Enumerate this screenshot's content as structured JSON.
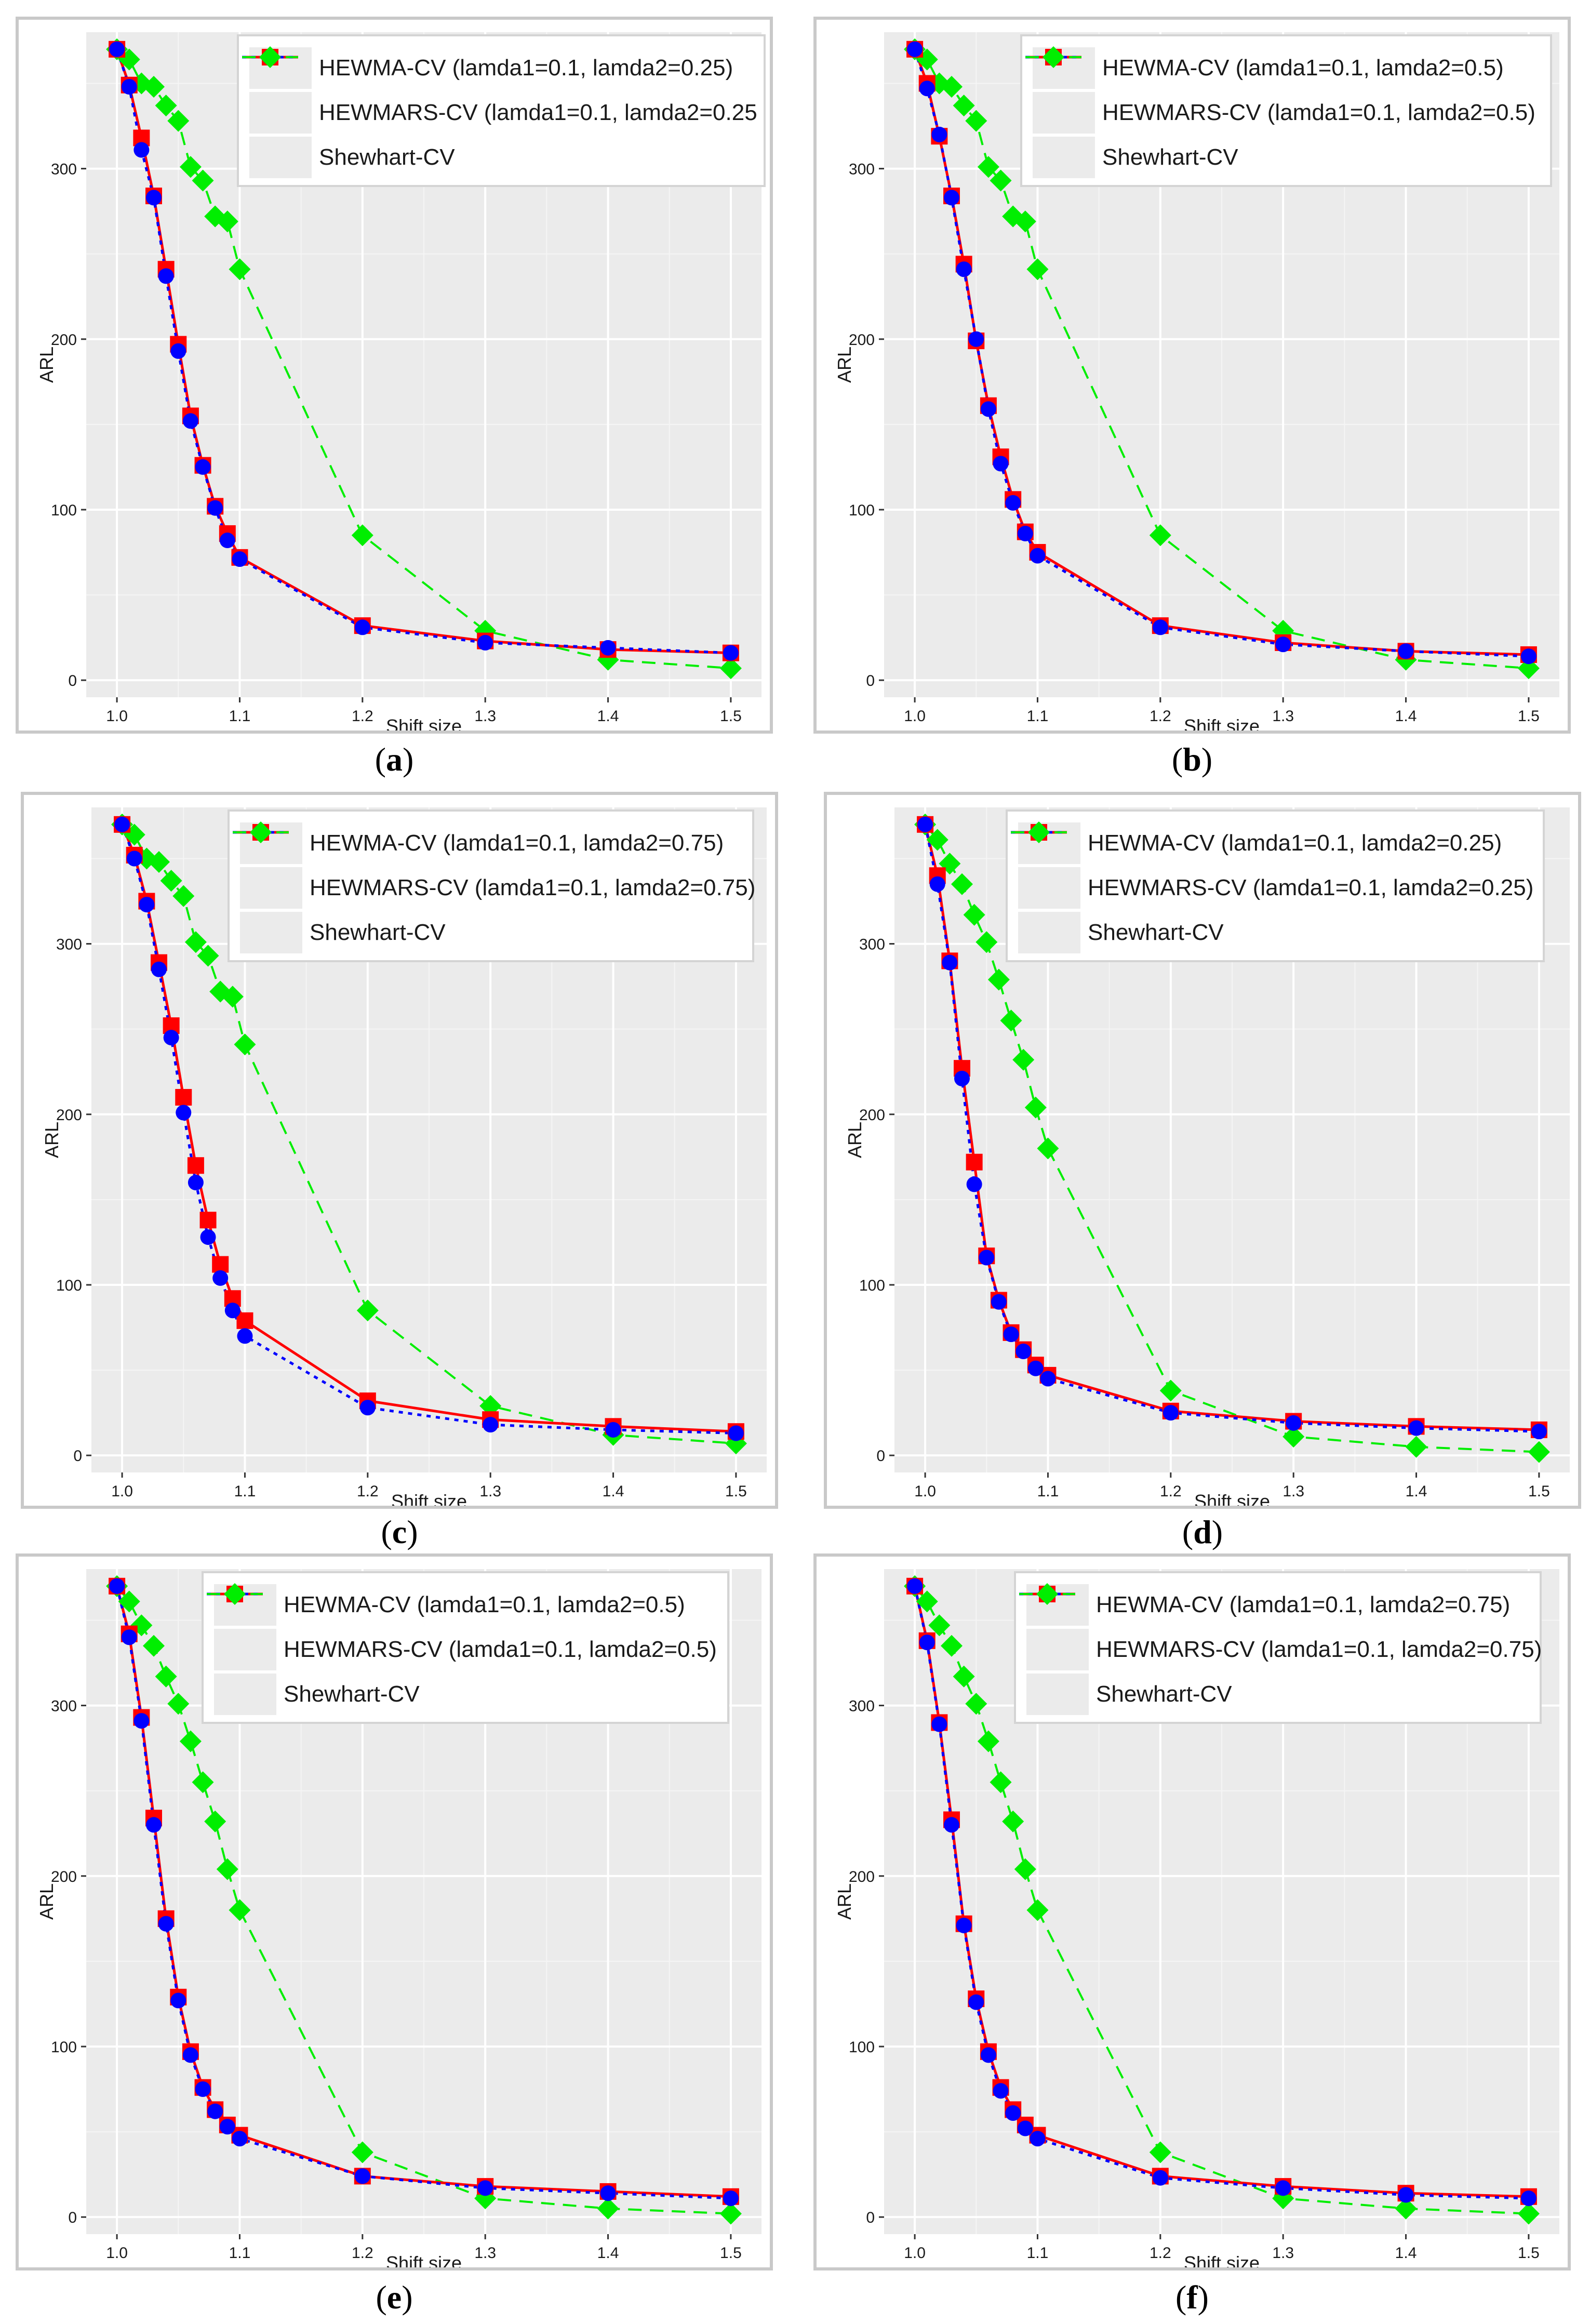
{
  "chart_data": [
    {
      "id": "a",
      "caption": "a",
      "type": "line",
      "xlabel": "Shift size",
      "ylabel": "ARL",
      "xlim": [
        0.975,
        1.525
      ],
      "ylim": [
        -10,
        380
      ],
      "xticks": [
        "1.0",
        "1.1",
        "1.2",
        "1.3",
        "1.4",
        "1.5"
      ],
      "yticks": [
        "0",
        "100",
        "200",
        "300"
      ],
      "x": [
        1.0,
        1.01,
        1.02,
        1.03,
        1.04,
        1.05,
        1.06,
        1.07,
        1.08,
        1.09,
        1.1,
        1.2,
        1.3,
        1.4,
        1.5
      ],
      "series": [
        {
          "name": "HEWMA-CV (lamda1=0.1, lamda2=0.25)",
          "color": "#ff0000",
          "style": "solid",
          "marker": "square",
          "values": [
            370,
            349,
            318,
            284,
            241,
            197,
            155,
            126,
            102,
            86,
            72,
            32,
            23,
            18,
            16
          ]
        },
        {
          "name": "HEWMARS-CV (lamda1=0.1, lamda2=0.25",
          "color": "#0000ff",
          "style": "dotted",
          "marker": "circle",
          "values": [
            370,
            348,
            311,
            283,
            237,
            193,
            152,
            125,
            101,
            82,
            71,
            31,
            22,
            19,
            16
          ]
        },
        {
          "name": "Shewhart-CV",
          "color": "#00ee00",
          "style": "dashed",
          "marker": "diamond",
          "values": [
            370,
            364,
            350,
            348,
            337,
            328,
            301,
            293,
            272,
            269,
            241,
            85,
            29,
            12,
            7
          ]
        }
      ]
    },
    {
      "id": "b",
      "caption": "b",
      "type": "line",
      "xlabel": "Shift size",
      "ylabel": "ARL",
      "xlim": [
        0.975,
        1.525
      ],
      "ylim": [
        -10,
        380
      ],
      "xticks": [
        "1.0",
        "1.1",
        "1.2",
        "1.3",
        "1.4",
        "1.5"
      ],
      "yticks": [
        "0",
        "100",
        "200",
        "300"
      ],
      "x": [
        1.0,
        1.01,
        1.02,
        1.03,
        1.04,
        1.05,
        1.06,
        1.07,
        1.08,
        1.09,
        1.1,
        1.2,
        1.3,
        1.4,
        1.5
      ],
      "series": [
        {
          "name": "HEWMA-CV (lamda1=0.1, lamda2=0.5)",
          "color": "#ff0000",
          "style": "solid",
          "marker": "square",
          "values": [
            370,
            350,
            319,
            284,
            244,
            199,
            161,
            131,
            106,
            87,
            75,
            32,
            22,
            17,
            15
          ]
        },
        {
          "name": "HEWMARS-CV (lamda1=0.1, lamda2=0.5)",
          "color": "#0000ff",
          "style": "dotted",
          "marker": "circle",
          "values": [
            370,
            347,
            320,
            283,
            241,
            200,
            159,
            127,
            104,
            86,
            73,
            31,
            21,
            17,
            14
          ]
        },
        {
          "name": "Shewhart-CV",
          "color": "#00ee00",
          "style": "dashed",
          "marker": "diamond",
          "values": [
            370,
            364,
            350,
            348,
            337,
            328,
            301,
            293,
            272,
            269,
            241,
            85,
            29,
            12,
            7
          ]
        }
      ]
    },
    {
      "id": "c",
      "caption": "c",
      "type": "line",
      "xlabel": "Shift size",
      "ylabel": "ARL",
      "xlim": [
        0.975,
        1.525
      ],
      "ylim": [
        -10,
        380
      ],
      "xticks": [
        "1.0",
        "1.1",
        "1.2",
        "1.3",
        "1.4",
        "1.5"
      ],
      "yticks": [
        "0",
        "100",
        "200",
        "300"
      ],
      "x": [
        1.0,
        1.01,
        1.02,
        1.03,
        1.04,
        1.05,
        1.06,
        1.07,
        1.08,
        1.09,
        1.1,
        1.2,
        1.3,
        1.4,
        1.5
      ],
      "series": [
        {
          "name": "HEWMA-CV (lamda1=0.1, lamda2=0.75)",
          "color": "#ff0000",
          "style": "solid",
          "marker": "square",
          "values": [
            370,
            352,
            325,
            289,
            252,
            210,
            170,
            138,
            112,
            92,
            79,
            32,
            21,
            17,
            14
          ]
        },
        {
          "name": "HEWMARS-CV (lamda1=0.1, lamda2=0.75)",
          "color": "#0000ff",
          "style": "dotted",
          "marker": "circle",
          "values": [
            370,
            350,
            323,
            285,
            245,
            201,
            160,
            128,
            104,
            85,
            70,
            28,
            18,
            15,
            13
          ]
        },
        {
          "name": "Shewhart-CV",
          "color": "#00ee00",
          "style": "dashed",
          "marker": "diamond",
          "values": [
            370,
            364,
            350,
            348,
            337,
            328,
            301,
            293,
            272,
            269,
            241,
            85,
            29,
            12,
            7
          ]
        }
      ]
    },
    {
      "id": "d",
      "caption": "d",
      "type": "line",
      "xlabel": "Shift size",
      "ylabel": "ARL",
      "xlim": [
        0.975,
        1.525
      ],
      "ylim": [
        -10,
        380
      ],
      "xticks": [
        "1.0",
        "1.1",
        "1.2",
        "1.3",
        "1.4",
        "1.5"
      ],
      "yticks": [
        "0",
        "100",
        "200",
        "300"
      ],
      "x": [
        1.0,
        1.01,
        1.02,
        1.03,
        1.04,
        1.05,
        1.06,
        1.07,
        1.08,
        1.09,
        1.1,
        1.2,
        1.3,
        1.4,
        1.5
      ],
      "series": [
        {
          "name": "HEWMA-CV (lamda1=0.1, lamda2=0.25)",
          "color": "#ff0000",
          "style": "solid",
          "marker": "square",
          "values": [
            370,
            340,
            290,
            227,
            172,
            117,
            91,
            72,
            62,
            53,
            47,
            26,
            20,
            17,
            15
          ]
        },
        {
          "name": "HEWMARS-CV (lamda1=0.1, lamda2=0.25)",
          "color": "#0000ff",
          "style": "dotted",
          "marker": "circle",
          "values": [
            370,
            335,
            289,
            221,
            159,
            116,
            90,
            71,
            61,
            51,
            45,
            25,
            19,
            16,
            14
          ]
        },
        {
          "name": "Shewhart-CV",
          "color": "#00ee00",
          "style": "dashed",
          "marker": "diamond",
          "values": [
            370,
            361,
            347,
            335,
            317,
            301,
            279,
            255,
            232,
            204,
            180,
            38,
            11,
            5,
            2
          ]
        }
      ]
    },
    {
      "id": "e",
      "caption": "e",
      "type": "line",
      "xlabel": "Shift size",
      "ylabel": "ARL",
      "xlim": [
        0.975,
        1.525
      ],
      "ylim": [
        -10,
        380
      ],
      "xticks": [
        "1.0",
        "1.1",
        "1.2",
        "1.3",
        "1.4",
        "1.5"
      ],
      "yticks": [
        "0",
        "100",
        "200",
        "300"
      ],
      "x": [
        1.0,
        1.01,
        1.02,
        1.03,
        1.04,
        1.05,
        1.06,
        1.07,
        1.08,
        1.09,
        1.1,
        1.2,
        1.3,
        1.4,
        1.5
      ],
      "series": [
        {
          "name": "HEWMA-CV (lamda1=0.1, lamda2=0.5)",
          "color": "#ff0000",
          "style": "solid",
          "marker": "square",
          "values": [
            370,
            342,
            293,
            234,
            175,
            129,
            97,
            76,
            63,
            54,
            48,
            24,
            18,
            15,
            12
          ]
        },
        {
          "name": "HEWMARS-CV (lamda1=0.1, lamda2=0.5)",
          "color": "#0000ff",
          "style": "dotted",
          "marker": "circle",
          "values": [
            370,
            340,
            291,
            230,
            172,
            127,
            95,
            75,
            62,
            53,
            46,
            24,
            17,
            14,
            11
          ]
        },
        {
          "name": "Shewhart-CV",
          "color": "#00ee00",
          "style": "dashed",
          "marker": "diamond",
          "values": [
            370,
            361,
            347,
            335,
            317,
            301,
            279,
            255,
            232,
            204,
            180,
            38,
            11,
            5,
            2
          ]
        }
      ]
    },
    {
      "id": "f",
      "caption": "f",
      "type": "line",
      "xlabel": "Shift size",
      "ylabel": "ARL",
      "xlim": [
        0.975,
        1.525
      ],
      "ylim": [
        -10,
        380
      ],
      "xticks": [
        "1.0",
        "1.1",
        "1.2",
        "1.3",
        "1.4",
        "1.5"
      ],
      "yticks": [
        "0",
        "100",
        "200",
        "300"
      ],
      "x": [
        1.0,
        1.01,
        1.02,
        1.03,
        1.04,
        1.05,
        1.06,
        1.07,
        1.08,
        1.09,
        1.1,
        1.2,
        1.3,
        1.4,
        1.5
      ],
      "series": [
        {
          "name": "HEWMA-CV (lamda1=0.1, lamda2=0.75)",
          "color": "#ff0000",
          "style": "solid",
          "marker": "square",
          "values": [
            370,
            338,
            290,
            233,
            172,
            128,
            97,
            76,
            63,
            54,
            48,
            24,
            18,
            14,
            12
          ]
        },
        {
          "name": "HEWMARS-CV (lamda1=0.1, lamda2=0.75)",
          "color": "#0000ff",
          "style": "dotted",
          "marker": "circle",
          "values": [
            370,
            337,
            289,
            230,
            171,
            126,
            95,
            74,
            61,
            52,
            46,
            23,
            17,
            13,
            11
          ]
        },
        {
          "name": "Shewhart-CV",
          "color": "#00ee00",
          "style": "dashed",
          "marker": "diamond",
          "values": [
            370,
            361,
            347,
            335,
            317,
            301,
            279,
            255,
            232,
            204,
            180,
            38,
            11,
            5,
            2
          ]
        }
      ]
    }
  ]
}
